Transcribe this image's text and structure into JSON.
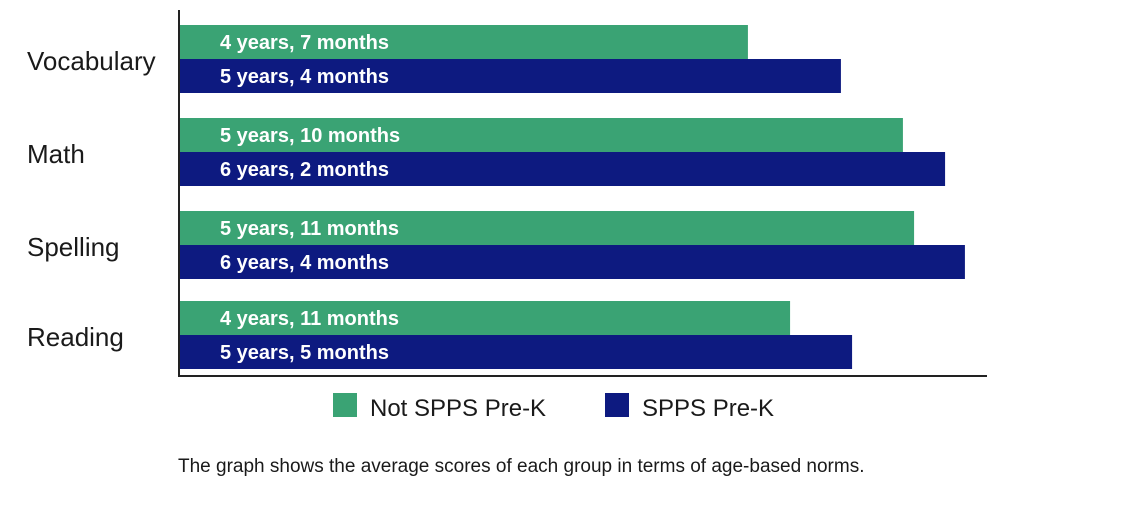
{
  "chart_data": {
    "type": "bar",
    "orientation": "horizontal",
    "categories": [
      "Vocabulary",
      "Math",
      "Spelling",
      "Reading"
    ],
    "series": [
      {
        "name": "Not SPPS Pre-K",
        "color": "#3aa374",
        "values": [
          4.58,
          5.83,
          5.92,
          4.92
        ],
        "labels": [
          "4 years, 7 months",
          "5 years, 10 months",
          "5 years, 11 months",
          "4 years, 11 months"
        ]
      },
      {
        "name": "SPPS Pre-K",
        "color": "#0d1a80",
        "values": [
          5.33,
          6.17,
          6.33,
          5.42
        ],
        "labels": [
          "5 years, 4 months",
          "6 years, 2 months",
          "6 years, 4 months",
          "5 years, 5 months"
        ]
      }
    ],
    "legend": "bottom",
    "grid": false
  },
  "caption": "The graph shows the average scores of each group in terms of age-based norms."
}
